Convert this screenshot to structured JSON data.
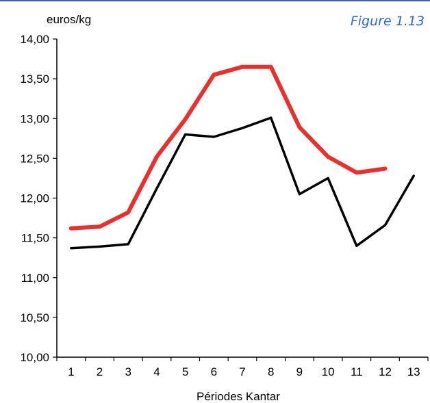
{
  "figure_label": "Figure 1.13",
  "chart_data": {
    "type": "line",
    "ylabel": "euros/kg",
    "xlabel": "Périodes Kantar",
    "categories": [
      "1",
      "2",
      "3",
      "4",
      "5",
      "6",
      "7",
      "8",
      "9",
      "10",
      "11",
      "12",
      "13"
    ],
    "ylim": [
      10.0,
      14.0
    ],
    "ytick_labels": [
      "10,00",
      "10,50",
      "11,00",
      "11,50",
      "12,00",
      "12,50",
      "13,00",
      "13,50",
      "14,00"
    ],
    "ytick_values": [
      10.0,
      10.5,
      11.0,
      11.5,
      12.0,
      12.5,
      13.0,
      13.5,
      14.0
    ],
    "grid": false,
    "series": [
      {
        "color": "#e8302f",
        "values": [
          11.62,
          11.64,
          11.82,
          12.52,
          12.99,
          13.55,
          13.65,
          13.65,
          12.89,
          12.52,
          12.32,
          12.37,
          null
        ]
      },
      {
        "color": "#000000",
        "values": [
          11.37,
          11.39,
          11.42,
          12.12,
          12.8,
          12.77,
          12.88,
          13.01,
          12.05,
          12.25,
          11.4,
          11.66,
          12.28
        ]
      }
    ]
  }
}
